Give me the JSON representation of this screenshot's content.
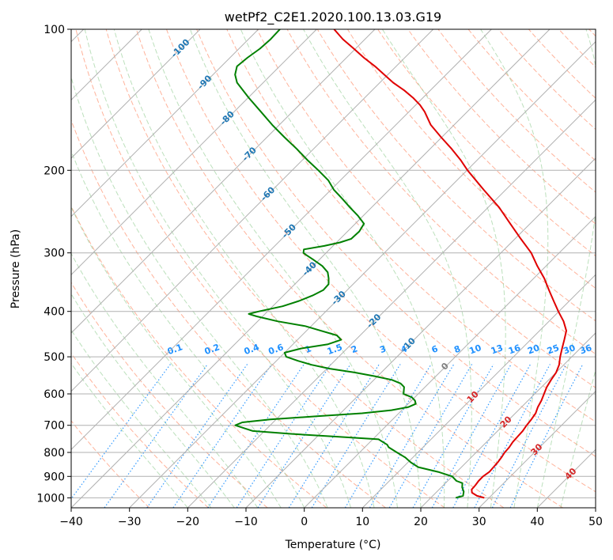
{
  "chart_data": {
    "type": "line",
    "subtype": "skew-t log-p",
    "title": "wetPf2_C2E1.2020.100.13.03.G19",
    "xlabel": "Temperature (°C)",
    "ylabel": "Pressure (hPa)",
    "xlim": [
      -40,
      50
    ],
    "ylim": [
      1050,
      100
    ],
    "y_scale": "log",
    "grid": true,
    "x_ticks": [
      "−40",
      "−30",
      "−20",
      "−10",
      "0",
      "10",
      "20",
      "30",
      "40",
      "50"
    ],
    "y_ticks": [
      "100",
      "200",
      "300",
      "400",
      "500",
      "600",
      "700",
      "800",
      "900",
      "1000"
    ],
    "colors": {
      "temperature": "#e00000",
      "dewpoint": "#008000",
      "isotherm_labels": "#1f77b4",
      "mixing_ratio": "#1e90ff",
      "dry_adiabat": "#ff9a7a",
      "moist_adiabat": "#8fcc8f",
      "grid": "#b0b0b0",
      "warm_isotherm_labels": "#d62728",
      "zero_label": "#808080"
    },
    "isotherm_labels": {
      "cold": [
        {
          "text": "-100",
          "p": 110
        },
        {
          "text": "-90",
          "p": 130
        },
        {
          "text": "-80",
          "p": 155
        },
        {
          "text": "-70",
          "p": 185
        },
        {
          "text": "-60",
          "p": 225
        },
        {
          "text": "-50",
          "p": 270
        },
        {
          "text": "-40",
          "p": 325
        },
        {
          "text": "-30",
          "p": 375
        },
        {
          "text": "-20",
          "p": 420
        },
        {
          "text": "-10",
          "p": 472
        }
      ],
      "zero": {
        "text": "0",
        "p": 525
      },
      "warm": [
        {
          "text": "10",
          "p": 610
        },
        {
          "text": "20",
          "p": 690
        },
        {
          "text": "30",
          "p": 790
        },
        {
          "text": "40",
          "p": 890
        }
      ]
    },
    "mixing_ratio_labels": [
      "0.1",
      "0.2",
      "0.4",
      "0.6",
      "1",
      "1.5",
      "2",
      "3",
      "4",
      "6",
      "8",
      "10",
      "13",
      "16",
      "20",
      "25",
      "30",
      "36"
    ],
    "series": [
      {
        "name": "temperature",
        "points": [
          [
            1000,
            29.2
          ],
          [
            990,
            27.6
          ],
          [
            975,
            26.2
          ],
          [
            960,
            25.6
          ],
          [
            940,
            25.5
          ],
          [
            920,
            25.3
          ],
          [
            900,
            25.3
          ],
          [
            880,
            25.6
          ],
          [
            860,
            25.5
          ],
          [
            840,
            25.4
          ],
          [
            820,
            25.2
          ],
          [
            800,
            24.9
          ],
          [
            780,
            24.8
          ],
          [
            760,
            24.5
          ],
          [
            740,
            24.4
          ],
          [
            720,
            24.3
          ],
          [
            700,
            24.0
          ],
          [
            680,
            23.8
          ],
          [
            660,
            23.5
          ],
          [
            640,
            22.8
          ],
          [
            620,
            22.3
          ],
          [
            600,
            21.6
          ],
          [
            580,
            20.9
          ],
          [
            560,
            20.4
          ],
          [
            540,
            20.0
          ],
          [
            520,
            19.2
          ],
          [
            500,
            18.0
          ],
          [
            480,
            16.9
          ],
          [
            460,
            15.8
          ],
          [
            440,
            14.6
          ],
          [
            420,
            12.5
          ],
          [
            400,
            9.9
          ],
          [
            380,
            7.3
          ],
          [
            360,
            4.6
          ],
          [
            340,
            1.8
          ],
          [
            320,
            -1.5
          ],
          [
            300,
            -4.8
          ],
          [
            280,
            -9.0
          ],
          [
            260,
            -13.4
          ],
          [
            240,
            -18.1
          ],
          [
            220,
            -23.8
          ],
          [
            200,
            -29.9
          ],
          [
            190,
            -32.9
          ],
          [
            180,
            -36.3
          ],
          [
            170,
            -40.1
          ],
          [
            160,
            -44.0
          ],
          [
            150,
            -47.3
          ],
          [
            145,
            -49.3
          ],
          [
            140,
            -51.7
          ],
          [
            135,
            -54.5
          ],
          [
            130,
            -57.7
          ],
          [
            125,
            -60.6
          ],
          [
            120,
            -63.6
          ],
          [
            115,
            -67.0
          ],
          [
            110,
            -70.3
          ],
          [
            105,
            -73.8
          ],
          [
            100,
            -77.0
          ]
        ]
      },
      {
        "name": "dewpoint",
        "points": [
          [
            1000,
            24.3
          ],
          [
            990,
            25.2
          ],
          [
            970,
            24.6
          ],
          [
            950,
            23.6
          ],
          [
            930,
            22.9
          ],
          [
            920,
            21.5
          ],
          [
            900,
            20.0
          ],
          [
            880,
            16.8
          ],
          [
            860,
            12.6
          ],
          [
            840,
            10.5
          ],
          [
            820,
            8.7
          ],
          [
            800,
            6.4
          ],
          [
            780,
            4.1
          ],
          [
            770,
            3.4
          ],
          [
            760,
            2.2
          ],
          [
            750,
            1.0
          ],
          [
            740,
            -6.8
          ],
          [
            730,
            -15.0
          ],
          [
            720,
            -22.0
          ],
          [
            710,
            -24.0
          ],
          [
            700,
            -26.0
          ],
          [
            690,
            -25.3
          ],
          [
            680,
            -21.0
          ],
          [
            670,
            -13.8
          ],
          [
            660,
            -6.3
          ],
          [
            650,
            -1.8
          ],
          [
            640,
            0.6
          ],
          [
            630,
            1.3
          ],
          [
            620,
            0.6
          ],
          [
            610,
            -0.5
          ],
          [
            600,
            -2.5
          ],
          [
            580,
            -3.6
          ],
          [
            570,
            -4.8
          ],
          [
            560,
            -6.9
          ],
          [
            550,
            -10.5
          ],
          [
            540,
            -14.6
          ],
          [
            530,
            -19.5
          ],
          [
            520,
            -23.3
          ],
          [
            510,
            -26.3
          ],
          [
            500,
            -29.0
          ],
          [
            490,
            -30.0
          ],
          [
            480,
            -27.9
          ],
          [
            470,
            -24.0
          ],
          [
            460,
            -22.5
          ],
          [
            450,
            -24.0
          ],
          [
            440,
            -27.5
          ],
          [
            430,
            -31.0
          ],
          [
            420,
            -36.6
          ],
          [
            410,
            -41.0
          ],
          [
            405,
            -42.8
          ],
          [
            400,
            -41.5
          ],
          [
            390,
            -38.3
          ],
          [
            380,
            -36.4
          ],
          [
            370,
            -35.0
          ],
          [
            360,
            -34.1
          ],
          [
            350,
            -34.2
          ],
          [
            340,
            -35.2
          ],
          [
            330,
            -36.4
          ],
          [
            320,
            -38.4
          ],
          [
            310,
            -41.1
          ],
          [
            303,
            -43.1
          ],
          [
            300,
            -43.9
          ],
          [
            295,
            -44.4
          ],
          [
            290,
            -41.5
          ],
          [
            285,
            -39.4
          ],
          [
            280,
            -38.1
          ],
          [
            270,
            -38.0
          ],
          [
            260,
            -38.5
          ],
          [
            250,
            -40.9
          ],
          [
            240,
            -43.7
          ],
          [
            230,
            -46.5
          ],
          [
            220,
            -49.5
          ],
          [
            210,
            -52.1
          ],
          [
            200,
            -55.5
          ],
          [
            190,
            -59.2
          ],
          [
            180,
            -62.9
          ],
          [
            170,
            -67.0
          ],
          [
            160,
            -71.2
          ],
          [
            150,
            -75.4
          ],
          [
            140,
            -79.9
          ],
          [
            130,
            -84.5
          ],
          [
            125,
            -86.2
          ],
          [
            120,
            -87.3
          ],
          [
            115,
            -87.0
          ],
          [
            110,
            -86.4
          ],
          [
            105,
            -86.2
          ],
          [
            100,
            -86.3
          ]
        ]
      }
    ]
  }
}
